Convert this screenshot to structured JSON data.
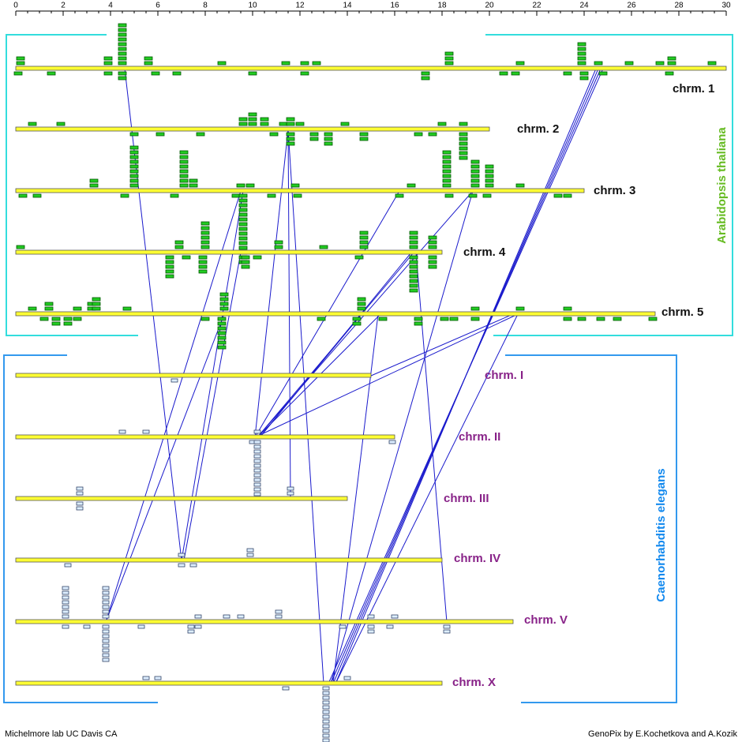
{
  "axis": {
    "lim": [
      0,
      30
    ],
    "ticks": [
      0,
      2,
      4,
      6,
      8,
      10,
      12,
      14,
      16,
      18,
      20,
      22,
      24,
      26,
      28,
      30
    ]
  },
  "groups": [
    {
      "name": "Arabidopsis thaliana",
      "chromosomes": [
        {
          "label": "chrm. 1",
          "length": 30,
          "markers": [
            [
              0.2,
              1,
              2
            ],
            [
              3.9,
              1,
              2
            ],
            [
              4.5,
              1,
              9
            ],
            [
              5.6,
              1,
              2
            ],
            [
              8.7,
              1,
              1
            ],
            [
              11.4,
              1,
              1
            ],
            [
              12.2,
              1,
              1
            ],
            [
              12.7,
              1,
              1
            ],
            [
              18.3,
              1,
              3
            ],
            [
              21.3,
              1,
              1
            ],
            [
              23.9,
              1,
              5
            ],
            [
              24.6,
              1,
              1
            ],
            [
              25.9,
              1,
              1
            ],
            [
              27.2,
              1,
              1
            ],
            [
              27.7,
              1,
              2
            ],
            [
              29.4,
              1,
              1
            ],
            [
              0.1,
              -1,
              1
            ],
            [
              1.5,
              -1,
              1
            ],
            [
              3.9,
              -1,
              1
            ],
            [
              4.5,
              -1,
              2
            ],
            [
              5.9,
              -1,
              1
            ],
            [
              6.8,
              -1,
              1
            ],
            [
              10.0,
              -1,
              1
            ],
            [
              12.2,
              -1,
              1
            ],
            [
              17.3,
              -1,
              2
            ],
            [
              20.6,
              -1,
              1
            ],
            [
              21.1,
              -1,
              1
            ],
            [
              23.3,
              -1,
              1
            ],
            [
              24.0,
              -1,
              2
            ],
            [
              24.8,
              -1,
              1
            ],
            [
              27.6,
              -1,
              1
            ]
          ]
        },
        {
          "label": "chrm. 2",
          "length": 20,
          "markers": [
            [
              0.7,
              1,
              1
            ],
            [
              1.9,
              1,
              1
            ],
            [
              9.6,
              1,
              2
            ],
            [
              10.0,
              1,
              3
            ],
            [
              10.5,
              1,
              2
            ],
            [
              11.3,
              1,
              1
            ],
            [
              11.6,
              1,
              2
            ],
            [
              12.0,
              1,
              1
            ],
            [
              13.9,
              1,
              1
            ],
            [
              18.0,
              1,
              1
            ],
            [
              18.9,
              1,
              1
            ],
            [
              5.0,
              -1,
              1
            ],
            [
              6.1,
              -1,
              1
            ],
            [
              7.8,
              -1,
              1
            ],
            [
              10.9,
              -1,
              1
            ],
            [
              11.6,
              -1,
              3
            ],
            [
              12.6,
              -1,
              2
            ],
            [
              13.2,
              -1,
              3
            ],
            [
              14.7,
              -1,
              2
            ],
            [
              17.0,
              -1,
              1
            ],
            [
              17.6,
              -1,
              1
            ],
            [
              18.9,
              -1,
              6
            ]
          ]
        },
        {
          "label": "chrm. 3",
          "length": 24,
          "markers": [
            [
              3.3,
              1,
              2
            ],
            [
              5.0,
              1,
              9
            ],
            [
              7.1,
              1,
              8
            ],
            [
              7.5,
              1,
              2
            ],
            [
              9.5,
              1,
              1
            ],
            [
              9.9,
              1,
              1
            ],
            [
              11.8,
              1,
              1
            ],
            [
              16.7,
              1,
              1
            ],
            [
              18.2,
              1,
              8
            ],
            [
              19.4,
              1,
              6
            ],
            [
              20.0,
              1,
              5
            ],
            [
              21.3,
              1,
              1
            ],
            [
              0.3,
              -1,
              1
            ],
            [
              0.9,
              -1,
              1
            ],
            [
              4.6,
              -1,
              1
            ],
            [
              6.7,
              -1,
              1
            ],
            [
              9.3,
              -1,
              1
            ],
            [
              9.6,
              -1,
              15
            ],
            [
              10.8,
              -1,
              1
            ],
            [
              11.9,
              -1,
              1
            ],
            [
              16.2,
              -1,
              1
            ],
            [
              18.3,
              -1,
              1
            ],
            [
              19.3,
              -1,
              1
            ],
            [
              19.9,
              -1,
              1
            ],
            [
              22.9,
              -1,
              1
            ],
            [
              23.3,
              -1,
              1
            ]
          ]
        },
        {
          "label": "chrm. 4",
          "length": 18,
          "markers": [
            [
              0.2,
              1,
              1
            ],
            [
              6.9,
              1,
              2
            ],
            [
              8.0,
              1,
              6
            ],
            [
              11.1,
              1,
              2
            ],
            [
              13.0,
              1,
              1
            ],
            [
              14.7,
              1,
              4
            ],
            [
              16.8,
              1,
              4
            ],
            [
              17.6,
              1,
              3
            ],
            [
              6.5,
              -1,
              5
            ],
            [
              7.2,
              -1,
              1
            ],
            [
              7.9,
              -1,
              4
            ],
            [
              9.7,
              -1,
              3
            ],
            [
              10.2,
              -1,
              1
            ],
            [
              14.5,
              -1,
              1
            ],
            [
              16.8,
              -1,
              8
            ],
            [
              17.6,
              -1,
              3
            ]
          ]
        },
        {
          "label": "chrm. 5",
          "length": 27,
          "markers": [
            [
              0.7,
              1,
              1
            ],
            [
              1.4,
              1,
              2
            ],
            [
              2.6,
              1,
              1
            ],
            [
              3.2,
              1,
              2
            ],
            [
              3.4,
              1,
              3
            ],
            [
              4.7,
              1,
              1
            ],
            [
              8.8,
              1,
              4
            ],
            [
              14.6,
              1,
              3
            ],
            [
              19.4,
              1,
              1
            ],
            [
              21.3,
              1,
              1
            ],
            [
              23.3,
              1,
              1
            ],
            [
              1.2,
              -1,
              1
            ],
            [
              1.7,
              -1,
              2
            ],
            [
              2.2,
              -1,
              2
            ],
            [
              2.6,
              -1,
              1
            ],
            [
              8.0,
              -1,
              1
            ],
            [
              8.7,
              -1,
              7
            ],
            [
              12.9,
              -1,
              1
            ],
            [
              14.4,
              -1,
              2
            ],
            [
              15.5,
              -1,
              1
            ],
            [
              17.0,
              -1,
              2
            ],
            [
              18.1,
              -1,
              1
            ],
            [
              18.5,
              -1,
              1
            ],
            [
              19.4,
              -1,
              1
            ],
            [
              23.3,
              -1,
              1
            ],
            [
              23.9,
              -1,
              1
            ],
            [
              24.7,
              -1,
              1
            ],
            [
              25.4,
              -1,
              1
            ],
            [
              26.9,
              -1,
              1
            ]
          ]
        }
      ]
    },
    {
      "name": "Caenorhabditis elegans",
      "chromosomes": [
        {
          "label": "chrm. I",
          "length": 15,
          "markers": [
            [
              6.7,
              -1,
              1
            ]
          ]
        },
        {
          "label": "chrm. II",
          "length": 16,
          "markers": [
            [
              4.5,
              1,
              1
            ],
            [
              5.5,
              1,
              1
            ],
            [
              10.2,
              1,
              1
            ],
            [
              10.0,
              -1,
              1
            ],
            [
              10.2,
              -1,
              12
            ],
            [
              15.9,
              -1,
              1
            ]
          ]
        },
        {
          "label": "chrm. III",
          "length": 14,
          "markers": [
            [
              2.7,
              1,
              2
            ],
            [
              11.6,
              1,
              2
            ],
            [
              2.7,
              -1,
              2
            ]
          ]
        },
        {
          "label": "chrm. IV",
          "length": 18,
          "markers": [
            [
              7.0,
              1,
              1
            ],
            [
              9.9,
              1,
              2
            ],
            [
              2.2,
              -1,
              1
            ],
            [
              7.0,
              -1,
              1
            ],
            [
              7.5,
              -1,
              1
            ]
          ]
        },
        {
          "label": "chrm. V",
          "length": 21,
          "markers": [
            [
              2.1,
              1,
              7
            ],
            [
              3.8,
              1,
              7
            ],
            [
              7.7,
              1,
              1
            ],
            [
              8.9,
              1,
              1
            ],
            [
              9.5,
              1,
              1
            ],
            [
              11.1,
              1,
              2
            ],
            [
              15.0,
              1,
              1
            ],
            [
              16.0,
              1,
              1
            ],
            [
              2.1,
              -1,
              1
            ],
            [
              3.0,
              -1,
              1
            ],
            [
              3.8,
              -1,
              8
            ],
            [
              5.3,
              -1,
              1
            ],
            [
              7.4,
              -1,
              2
            ],
            [
              7.7,
              -1,
              1
            ],
            [
              13.8,
              -1,
              1
            ],
            [
              15.0,
              -1,
              2
            ],
            [
              15.8,
              -1,
              1
            ],
            [
              18.2,
              -1,
              2
            ]
          ]
        },
        {
          "label": "chrm. X",
          "length": 18,
          "markers": [
            [
              5.5,
              1,
              1
            ],
            [
              6.0,
              1,
              1
            ],
            [
              14.0,
              1,
              1
            ],
            [
              11.4,
              -1,
              1
            ],
            [
              13.1,
              -1,
              12
            ]
          ]
        }
      ]
    }
  ],
  "links": [
    [
      0,
      4.6,
      3,
      7.0
    ],
    [
      0,
      24.8,
      5,
      13.2
    ],
    [
      0,
      24.7,
      5,
      13.3
    ],
    [
      0,
      24.6,
      5,
      13.4
    ],
    [
      0,
      24.5,
      5,
      13.5
    ],
    [
      1,
      11.5,
      2,
      11.6
    ],
    [
      1,
      11.5,
      5,
      13.0
    ],
    [
      1,
      11.5,
      1,
      10.1
    ],
    [
      2,
      19.3,
      1,
      10.2
    ],
    [
      2,
      19.3,
      5,
      13.3
    ],
    [
      2,
      16.2,
      1,
      10.1
    ],
    [
      2,
      9.5,
      4,
      3.8
    ],
    [
      2,
      9.6,
      3,
      7.0
    ],
    [
      3,
      16.8,
      1,
      10.2
    ],
    [
      3,
      16.7,
      1,
      10.3
    ],
    [
      3,
      16.9,
      4,
      18.2
    ],
    [
      3,
      9.5,
      3,
      7.1
    ],
    [
      4,
      8.8,
      4,
      3.8
    ],
    [
      4,
      15.4,
      1,
      10.2
    ],
    [
      4,
      15.3,
      5,
      13.4
    ],
    [
      4,
      21.2,
      1,
      10.1
    ],
    [
      4,
      21.2,
      5,
      13.5
    ],
    [
      4,
      21.0,
      0,
      15.0
    ],
    [
      4,
      14.6,
      1,
      10.3
    ]
  ],
  "footer": {
    "left": "Michelmore lab UC Davis CA",
    "right": "GenoPix by E.Kochetkova and A.Kozik"
  }
}
